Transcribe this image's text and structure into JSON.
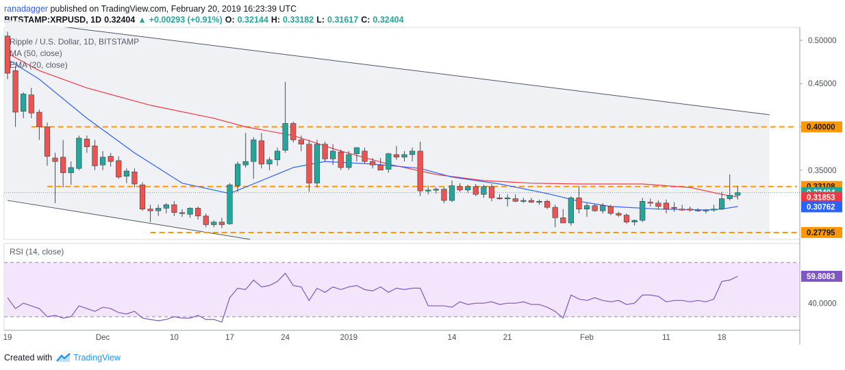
{
  "header": {
    "author": "ranadagger",
    "published_text": "published on TradingView.com, February 20, 2019 16:23:39 UTC",
    "symbol": "BITSTAMP:XRPUSD, 1D",
    "price": "0.32404",
    "change": "+0.00293 (+0.91%)",
    "o_label": "O:",
    "o_value": "0.32144",
    "h_label": "H:",
    "h_value": "0.33182",
    "l_label": "L:",
    "l_value": "0.31617",
    "c_label": "C:",
    "c_value": "0.32404"
  },
  "footer": {
    "created_with": "Created with",
    "brand": "TradingView"
  },
  "colors": {
    "up": "#26a69a",
    "down": "#ef5350",
    "ma50": "#f23645",
    "ema20": "#2962ff",
    "orange": "#ff9800",
    "channel": "#4a5568",
    "rsi": "#7e57c2",
    "rsi_fill": "#f3e5fb"
  },
  "chart_data": [
    {
      "type": "candlestick",
      "title": "Ripple / U.S. Dollar, 1D, BITSTAMP",
      "indicators": [
        "MA (50, close)",
        "EMA (20, close)"
      ],
      "ylim": [
        0.27,
        0.515
      ],
      "y_ticks": [
        0.5,
        0.45,
        0.4,
        0.35
      ],
      "y_tick_labels": [
        "0.50000",
        "0.45000",
        "0.40000",
        "0.35000"
      ],
      "x_tick_labels": [
        {
          "i": 0,
          "label": "19"
        },
        {
          "i": 12,
          "label": "Dec"
        },
        {
          "i": 21,
          "label": "10"
        },
        {
          "i": 28,
          "label": "17"
        },
        {
          "i": 35,
          "label": "24"
        },
        {
          "i": 43,
          "label": "2019"
        },
        {
          "i": 56,
          "label": "14"
        },
        {
          "i": 63,
          "label": "21"
        },
        {
          "i": 73,
          "label": "Feb"
        },
        {
          "i": 83,
          "label": "11"
        },
        {
          "i": 90,
          "label": "18"
        }
      ],
      "candles": [
        {
          "o": 0.505,
          "h": 0.51,
          "l": 0.455,
          "c": 0.462
        },
        {
          "o": 0.465,
          "h": 0.47,
          "l": 0.4,
          "c": 0.417
        },
        {
          "o": 0.418,
          "h": 0.44,
          "l": 0.41,
          "c": 0.438
        },
        {
          "o": 0.437,
          "h": 0.445,
          "l": 0.41,
          "c": 0.416
        },
        {
          "o": 0.417,
          "h": 0.42,
          "l": 0.385,
          "c": 0.4
        },
        {
          "o": 0.4,
          "h": 0.405,
          "l": 0.355,
          "c": 0.366
        },
        {
          "o": 0.364,
          "h": 0.37,
          "l": 0.312,
          "c": 0.36
        },
        {
          "o": 0.365,
          "h": 0.385,
          "l": 0.33,
          "c": 0.347
        },
        {
          "o": 0.347,
          "h": 0.36,
          "l": 0.333,
          "c": 0.353
        },
        {
          "o": 0.352,
          "h": 0.39,
          "l": 0.35,
          "c": 0.387
        },
        {
          "o": 0.386,
          "h": 0.39,
          "l": 0.37,
          "c": 0.377
        },
        {
          "o": 0.378,
          "h": 0.385,
          "l": 0.35,
          "c": 0.355
        },
        {
          "o": 0.356,
          "h": 0.372,
          "l": 0.35,
          "c": 0.365
        },
        {
          "o": 0.366,
          "h": 0.37,
          "l": 0.354,
          "c": 0.36
        },
        {
          "o": 0.361,
          "h": 0.366,
          "l": 0.34,
          "c": 0.342
        },
        {
          "o": 0.343,
          "h": 0.352,
          "l": 0.335,
          "c": 0.349
        },
        {
          "o": 0.348,
          "h": 0.352,
          "l": 0.33,
          "c": 0.334
        },
        {
          "o": 0.333,
          "h": 0.336,
          "l": 0.303,
          "c": 0.305
        },
        {
          "o": 0.305,
          "h": 0.31,
          "l": 0.29,
          "c": 0.303
        },
        {
          "o": 0.303,
          "h": 0.31,
          "l": 0.297,
          "c": 0.306
        },
        {
          "o": 0.306,
          "h": 0.312,
          "l": 0.3,
          "c": 0.31
        },
        {
          "o": 0.31,
          "h": 0.314,
          "l": 0.297,
          "c": 0.301
        },
        {
          "o": 0.301,
          "h": 0.305,
          "l": 0.296,
          "c": 0.3
        },
        {
          "o": 0.299,
          "h": 0.307,
          "l": 0.295,
          "c": 0.306
        },
        {
          "o": 0.306,
          "h": 0.308,
          "l": 0.293,
          "c": 0.297
        },
        {
          "o": 0.297,
          "h": 0.3,
          "l": 0.284,
          "c": 0.287
        },
        {
          "o": 0.287,
          "h": 0.292,
          "l": 0.284,
          "c": 0.29
        },
        {
          "o": 0.29,
          "h": 0.295,
          "l": 0.283,
          "c": 0.287
        },
        {
          "o": 0.288,
          "h": 0.335,
          "l": 0.287,
          "c": 0.333
        },
        {
          "o": 0.332,
          "h": 0.36,
          "l": 0.325,
          "c": 0.357
        },
        {
          "o": 0.356,
          "h": 0.393,
          "l": 0.353,
          "c": 0.36
        },
        {
          "o": 0.36,
          "h": 0.388,
          "l": 0.34,
          "c": 0.385
        },
        {
          "o": 0.384,
          "h": 0.393,
          "l": 0.352,
          "c": 0.357
        },
        {
          "o": 0.357,
          "h": 0.365,
          "l": 0.35,
          "c": 0.362
        },
        {
          "o": 0.362,
          "h": 0.376,
          "l": 0.355,
          "c": 0.372
        },
        {
          "o": 0.373,
          "h": 0.452,
          "l": 0.37,
          "c": 0.404
        },
        {
          "o": 0.404,
          "h": 0.406,
          "l": 0.382,
          "c": 0.385
        },
        {
          "o": 0.385,
          "h": 0.39,
          "l": 0.372,
          "c": 0.38
        },
        {
          "o": 0.38,
          "h": 0.385,
          "l": 0.325,
          "c": 0.335
        },
        {
          "o": 0.335,
          "h": 0.385,
          "l": 0.33,
          "c": 0.38
        },
        {
          "o": 0.38,
          "h": 0.383,
          "l": 0.36,
          "c": 0.363
        },
        {
          "o": 0.363,
          "h": 0.38,
          "l": 0.356,
          "c": 0.372
        },
        {
          "o": 0.371,
          "h": 0.374,
          "l": 0.35,
          "c": 0.353
        },
        {
          "o": 0.353,
          "h": 0.372,
          "l": 0.35,
          "c": 0.368
        },
        {
          "o": 0.369,
          "h": 0.376,
          "l": 0.36,
          "c": 0.376
        },
        {
          "o": 0.372,
          "h": 0.376,
          "l": 0.358,
          "c": 0.36
        },
        {
          "o": 0.36,
          "h": 0.364,
          "l": 0.352,
          "c": 0.356
        },
        {
          "o": 0.356,
          "h": 0.364,
          "l": 0.35,
          "c": 0.35
        },
        {
          "o": 0.351,
          "h": 0.37,
          "l": 0.347,
          "c": 0.369
        },
        {
          "o": 0.368,
          "h": 0.378,
          "l": 0.362,
          "c": 0.365
        },
        {
          "o": 0.365,
          "h": 0.372,
          "l": 0.36,
          "c": 0.368
        },
        {
          "o": 0.368,
          "h": 0.376,
          "l": 0.36,
          "c": 0.372
        },
        {
          "o": 0.372,
          "h": 0.383,
          "l": 0.32,
          "c": 0.326
        },
        {
          "o": 0.326,
          "h": 0.332,
          "l": 0.322,
          "c": 0.327
        },
        {
          "o": 0.327,
          "h": 0.33,
          "l": 0.323,
          "c": 0.328
        },
        {
          "o": 0.328,
          "h": 0.33,
          "l": 0.312,
          "c": 0.315
        },
        {
          "o": 0.315,
          "h": 0.338,
          "l": 0.313,
          "c": 0.332
        },
        {
          "o": 0.331,
          "h": 0.335,
          "l": 0.325,
          "c": 0.327
        },
        {
          "o": 0.327,
          "h": 0.333,
          "l": 0.324,
          "c": 0.331
        },
        {
          "o": 0.331,
          "h": 0.334,
          "l": 0.32,
          "c": 0.322
        },
        {
          "o": 0.322,
          "h": 0.333,
          "l": 0.318,
          "c": 0.331
        },
        {
          "o": 0.331,
          "h": 0.334,
          "l": 0.314,
          "c": 0.318
        },
        {
          "o": 0.318,
          "h": 0.322,
          "l": 0.316,
          "c": 0.317
        },
        {
          "o": 0.317,
          "h": 0.322,
          "l": 0.308,
          "c": 0.318
        },
        {
          "o": 0.317,
          "h": 0.322,
          "l": 0.313,
          "c": 0.314
        },
        {
          "o": 0.314,
          "h": 0.318,
          "l": 0.312,
          "c": 0.315
        },
        {
          "o": 0.315,
          "h": 0.318,
          "l": 0.312,
          "c": 0.313
        },
        {
          "o": 0.313,
          "h": 0.316,
          "l": 0.31,
          "c": 0.314
        },
        {
          "o": 0.314,
          "h": 0.316,
          "l": 0.305,
          "c": 0.307
        },
        {
          "o": 0.307,
          "h": 0.31,
          "l": 0.284,
          "c": 0.295
        },
        {
          "o": 0.295,
          "h": 0.305,
          "l": 0.29,
          "c": 0.289
        },
        {
          "o": 0.289,
          "h": 0.32,
          "l": 0.286,
          "c": 0.318
        },
        {
          "o": 0.318,
          "h": 0.332,
          "l": 0.3,
          "c": 0.305
        },
        {
          "o": 0.305,
          "h": 0.312,
          "l": 0.296,
          "c": 0.309
        },
        {
          "o": 0.309,
          "h": 0.311,
          "l": 0.302,
          "c": 0.303
        },
        {
          "o": 0.303,
          "h": 0.312,
          "l": 0.3,
          "c": 0.309
        },
        {
          "o": 0.308,
          "h": 0.31,
          "l": 0.298,
          "c": 0.3
        },
        {
          "o": 0.3,
          "h": 0.302,
          "l": 0.296,
          "c": 0.298
        },
        {
          "o": 0.298,
          "h": 0.3,
          "l": 0.288,
          "c": 0.29
        },
        {
          "o": 0.29,
          "h": 0.293,
          "l": 0.286,
          "c": 0.292
        },
        {
          "o": 0.292,
          "h": 0.318,
          "l": 0.29,
          "c": 0.314
        },
        {
          "o": 0.313,
          "h": 0.317,
          "l": 0.308,
          "c": 0.312
        },
        {
          "o": 0.312,
          "h": 0.315,
          "l": 0.305,
          "c": 0.308
        },
        {
          "o": 0.312,
          "h": 0.316,
          "l": 0.3,
          "c": 0.305
        },
        {
          "o": 0.307,
          "h": 0.313,
          "l": 0.302,
          "c": 0.306
        },
        {
          "o": 0.305,
          "h": 0.31,
          "l": 0.303,
          "c": 0.304
        },
        {
          "o": 0.305,
          "h": 0.308,
          "l": 0.302,
          "c": 0.304
        },
        {
          "o": 0.304,
          "h": 0.306,
          "l": 0.302,
          "c": 0.303
        },
        {
          "o": 0.303,
          "h": 0.305,
          "l": 0.3,
          "c": 0.304
        },
        {
          "o": 0.304,
          "h": 0.31,
          "l": 0.302,
          "c": 0.305
        },
        {
          "o": 0.305,
          "h": 0.325,
          "l": 0.304,
          "c": 0.317
        },
        {
          "o": 0.317,
          "h": 0.345,
          "l": 0.315,
          "c": 0.321
        },
        {
          "o": 0.321,
          "h": 0.332,
          "l": 0.316,
          "c": 0.324
        }
      ],
      "ma50": [
        [
          0,
          0.485
        ],
        [
          4,
          0.465
        ],
        [
          10,
          0.445
        ],
        [
          18,
          0.425
        ],
        [
          26,
          0.41
        ],
        [
          30,
          0.4
        ],
        [
          36,
          0.39
        ],
        [
          42,
          0.372
        ],
        [
          48,
          0.357
        ],
        [
          54,
          0.345
        ],
        [
          60,
          0.338
        ],
        [
          66,
          0.335
        ],
        [
          72,
          0.334
        ],
        [
          80,
          0.334
        ],
        [
          86,
          0.33
        ],
        [
          90,
          0.322
        ],
        [
          92,
          0.319
        ]
      ],
      "ema20": [
        [
          0,
          0.478
        ],
        [
          4,
          0.455
        ],
        [
          10,
          0.41
        ],
        [
          16,
          0.37
        ],
        [
          22,
          0.335
        ],
        [
          28,
          0.323
        ],
        [
          32,
          0.338
        ],
        [
          36,
          0.353
        ],
        [
          40,
          0.36
        ],
        [
          46,
          0.357
        ],
        [
          52,
          0.352
        ],
        [
          56,
          0.342
        ],
        [
          62,
          0.334
        ],
        [
          68,
          0.323
        ],
        [
          72,
          0.314
        ],
        [
          76,
          0.308
        ],
        [
          82,
          0.305
        ],
        [
          88,
          0.304
        ],
        [
          90,
          0.305
        ],
        [
          92,
          0.308
        ]
      ],
      "levels": [
        {
          "value": 0.4,
          "label": "0.40000"
        },
        {
          "value": 0.33108,
          "label": "0.33108"
        },
        {
          "value": 0.27795,
          "label": "0.27795"
        }
      ],
      "price_labels": [
        {
          "value": 0.32404,
          "label": "0.32404",
          "color": "#26a69a"
        },
        {
          "value": 0.31853,
          "label": "0.31853",
          "color": "#f23645"
        },
        {
          "value": 0.30762,
          "label": "0.30762",
          "color": "#2962ff"
        }
      ],
      "channel_upper": [
        [
          -10,
          0.535
        ],
        [
          96,
          0.414
        ]
      ],
      "channel_lower": [
        [
          0,
          0.315
        ],
        [
          36,
          0.262
        ]
      ]
    },
    {
      "type": "line",
      "title": "RSI (14, close)",
      "ylim": [
        25,
        84
      ],
      "y_ticks": [
        40
      ],
      "y_tick_labels": [
        "40.0000"
      ],
      "bands": [
        30,
        70
      ],
      "last_value_label": "59.8083",
      "values": [
        44,
        36,
        40,
        38,
        36,
        30,
        31,
        29,
        30,
        38,
        36,
        34,
        37,
        36,
        33,
        32,
        34,
        29,
        28,
        27,
        28,
        30,
        29,
        29,
        31,
        28,
        28,
        26,
        44,
        51,
        50,
        57,
        52,
        53,
        56,
        62,
        53,
        52,
        42,
        51,
        48,
        52,
        50,
        52,
        53,
        50,
        49,
        52,
        48,
        51,
        50,
        51,
        51,
        38,
        38,
        38,
        37,
        41,
        39,
        40,
        40,
        41,
        39,
        40,
        40,
        41,
        39,
        39,
        37,
        34,
        29,
        46,
        43,
        42,
        44,
        42,
        41,
        42,
        39,
        40,
        46,
        46,
        45,
        41,
        42,
        42,
        41,
        42,
        41,
        43,
        56,
        57,
        59.8
      ]
    }
  ]
}
